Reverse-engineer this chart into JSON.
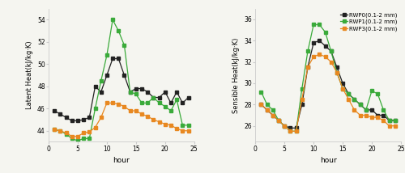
{
  "hours": [
    1,
    2,
    3,
    4,
    5,
    6,
    7,
    8,
    9,
    10,
    11,
    12,
    13,
    14,
    15,
    16,
    17,
    18,
    19,
    20,
    21,
    22,
    23,
    24
  ],
  "latent_RWP0": [
    45.8,
    45.5,
    45.2,
    44.9,
    44.9,
    45.0,
    45.2,
    48.0,
    47.5,
    49.0,
    50.5,
    50.5,
    49.0,
    47.5,
    47.8,
    47.8,
    47.5,
    47.0,
    47.0,
    47.5,
    46.5,
    47.5,
    46.5,
    47.0
  ],
  "latent_RWP1": [
    44.1,
    44.0,
    43.7,
    43.3,
    43.1,
    43.3,
    43.3,
    46.0,
    48.5,
    50.8,
    54.0,
    53.0,
    51.7,
    47.5,
    47.3,
    46.5,
    46.5,
    47.0,
    46.5,
    46.2,
    45.8,
    46.8,
    44.5,
    44.5
  ],
  "latent_RWP3": [
    44.1,
    44.0,
    43.8,
    43.5,
    43.5,
    43.8,
    43.9,
    44.3,
    45.2,
    46.5,
    46.5,
    46.4,
    46.2,
    45.8,
    45.8,
    45.5,
    45.3,
    45.0,
    44.8,
    44.6,
    44.5,
    44.2,
    44.0,
    44.0
  ],
  "sensible_RWP0": [
    28.0,
    27.5,
    27.0,
    26.5,
    26.0,
    25.8,
    25.8,
    28.0,
    31.5,
    33.8,
    34.0,
    33.5,
    33.0,
    31.5,
    30.0,
    29.0,
    28.5,
    28.0,
    27.5,
    27.5,
    27.0,
    27.0,
    26.5,
    26.5
  ],
  "sensible_RWP1": [
    29.2,
    28.0,
    27.5,
    26.5,
    26.0,
    25.5,
    25.5,
    29.5,
    33.0,
    35.5,
    35.5,
    34.8,
    33.0,
    31.0,
    29.5,
    29.0,
    28.5,
    28.0,
    27.5,
    29.3,
    29.0,
    27.5,
    26.5,
    26.5
  ],
  "sensible_RWP3": [
    28.0,
    27.5,
    27.0,
    26.5,
    26.0,
    25.5,
    25.5,
    28.5,
    31.5,
    32.5,
    32.7,
    32.5,
    32.0,
    31.0,
    29.5,
    28.5,
    27.5,
    27.0,
    27.0,
    26.8,
    26.8,
    26.5,
    26.0,
    26.0
  ],
  "color_RWP0": "#222222",
  "color_RWP1": "#3aaa3a",
  "color_RWP3": "#e88820",
  "marker": "s",
  "markersize": 2.5,
  "linewidth": 0.9,
  "left_ylabel": "Latent Heat(kJ/kg·K)",
  "right_ylabel": "Sensible Heat(kJ/kg·K)",
  "xlabel": "hour",
  "left_ylim": [
    43.0,
    55.0
  ],
  "left_yticks": [
    44,
    46,
    48,
    50,
    52,
    54
  ],
  "right_ylim": [
    24.5,
    37.0
  ],
  "right_yticks": [
    26,
    28,
    30,
    32,
    34,
    36
  ],
  "xlim": [
    0,
    25
  ],
  "xticks": [
    0,
    5,
    10,
    15,
    20,
    25
  ],
  "legend_labels": [
    "RWP0(0.1-2 mm)",
    "RWP1(0.1-2 mm)",
    "RWP3(0.1-2 mm)"
  ],
  "background_color": "#f5f5f0",
  "spine_color": "#cccccc"
}
